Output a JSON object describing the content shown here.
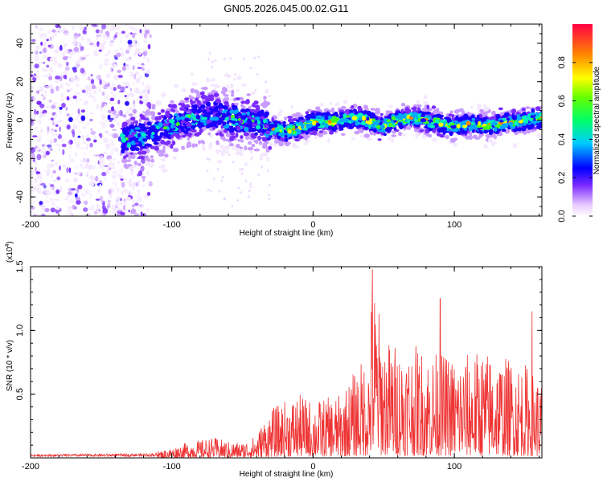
{
  "chart_data": [
    {
      "type": "heatmap",
      "title": "GN05.2026.045.00.02.G11",
      "xlabel": "Height of straight line (km)",
      "ylabel": "Frequency (Hz)",
      "xlim": [
        -200,
        162
      ],
      "ylim": [
        -50,
        50
      ],
      "x_ticks": [
        -200,
        -100,
        0,
        100
      ],
      "y_ticks": [
        -40,
        -20,
        0,
        20,
        40
      ],
      "colorbar": {
        "label": "Normalized spectral amplitude",
        "range": [
          0,
          1
        ],
        "ticks": [
          "0.0",
          "0.2",
          "0.4",
          "0.6",
          "0.8"
        ]
      },
      "ridge": {
        "x": [
          -130,
          -120,
          -110,
          -100,
          -90,
          -80,
          -70,
          -60,
          -50,
          -40,
          -35,
          -30,
          -20,
          -10,
          0,
          10,
          20,
          30,
          40,
          50,
          60,
          70,
          80,
          90,
          100,
          110,
          120,
          130,
          140,
          150,
          160
        ],
        "frequency_hz": [
          -10,
          -8,
          -6,
          -3,
          0,
          2,
          3,
          1,
          0,
          -1,
          -2,
          -4,
          -6,
          -4,
          -1,
          -1,
          0,
          1,
          -1,
          -3,
          0,
          1,
          0,
          -2,
          -3,
          -2,
          -3,
          -2,
          -1,
          0,
          1
        ]
      },
      "noise_region_x": [
        -200,
        -115
      ]
    },
    {
      "type": "line",
      "xlabel": "Height of straight line (km)",
      "ylabel": "SNR (10 * v/v)",
      "scale_label": "(x10",
      "scale_exponent": "4",
      "scale_suffix": ")",
      "xlim": [
        -200,
        162
      ],
      "ylim": [
        0,
        1.5
      ],
      "x_ticks": [
        -200,
        -100,
        0,
        100
      ],
      "y_ticks": [
        0.5,
        1.0,
        1.5
      ],
      "series": [
        {
          "name": "SNR",
          "color": "#ee3333",
          "envelope": {
            "x": [
              -200,
              -120,
              -110,
              -100,
              -90,
              -80,
              -70,
              -60,
              -50,
              -40,
              -35,
              -30,
              -20,
              -10,
              0,
              20,
              30,
              40,
              42,
              50,
              60,
              75,
              80,
              100,
              120,
              150,
              162
            ],
            "amplitude": [
              0.03,
              0.04,
              0.05,
              0.08,
              0.12,
              0.14,
              0.16,
              0.13,
              0.12,
              0.18,
              0.3,
              0.38,
              0.45,
              0.5,
              0.45,
              0.5,
              0.7,
              0.85,
              1.48,
              0.95,
              0.9,
              0.88,
              0.85,
              0.8,
              0.85,
              0.75,
              0.6
            ]
          },
          "peaks": [
            {
              "x": 42,
              "value": 1.48
            },
            {
              "x": 90,
              "value": 1.25
            },
            {
              "x": 155,
              "value": 1.15
            }
          ]
        }
      ]
    }
  ]
}
